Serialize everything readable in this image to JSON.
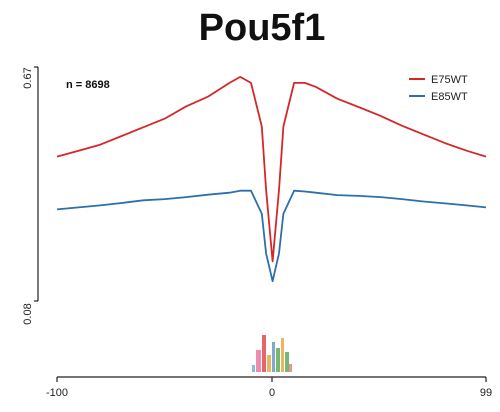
{
  "chart_data": {
    "type": "line",
    "title": "Pou5f1",
    "annotation": "n = 8698",
    "xlabel": "",
    "ylabel": "",
    "x_ticks": [
      -100,
      0,
      99
    ],
    "x_tick_labels": [
      "-100",
      "0",
      "99"
    ],
    "y_ticks": [
      0.08,
      0.67
    ],
    "y_tick_labels": [
      "0.08",
      "0.67"
    ],
    "xlim": [
      -100,
      99
    ],
    "ylim": [
      0.08,
      0.67
    ],
    "legend_position": "top-right",
    "grid": false,
    "series": [
      {
        "name": "E75WT",
        "color": "#d62728",
        "x": [
          -100,
          -90,
          -80,
          -70,
          -60,
          -50,
          -40,
          -30,
          -20,
          -15,
          -10,
          -5,
          -3,
          0,
          3,
          5,
          10,
          15,
          20,
          30,
          40,
          50,
          60,
          70,
          80,
          90,
          99
        ],
        "values": [
          0.444,
          0.459,
          0.474,
          0.496,
          0.518,
          0.54,
          0.571,
          0.595,
          0.63,
          0.645,
          0.63,
          0.52,
          0.36,
          0.18,
          0.36,
          0.52,
          0.63,
          0.63,
          0.62,
          0.59,
          0.569,
          0.547,
          0.522,
          0.5,
          0.478,
          0.459,
          0.444
        ]
      },
      {
        "name": "E85WT",
        "color": "#2c6fac",
        "x": [
          -100,
          -90,
          -80,
          -70,
          -60,
          -50,
          -40,
          -30,
          -20,
          -15,
          -10,
          -5,
          -3,
          0,
          3,
          5,
          10,
          15,
          20,
          30,
          40,
          50,
          60,
          70,
          80,
          90,
          99
        ],
        "values": [
          0.311,
          0.316,
          0.321,
          0.327,
          0.334,
          0.337,
          0.342,
          0.348,
          0.353,
          0.358,
          0.358,
          0.3,
          0.2,
          0.13,
          0.2,
          0.3,
          0.358,
          0.356,
          0.353,
          0.347,
          0.345,
          0.342,
          0.337,
          0.331,
          0.326,
          0.321,
          0.316
        ]
      }
    ]
  }
}
